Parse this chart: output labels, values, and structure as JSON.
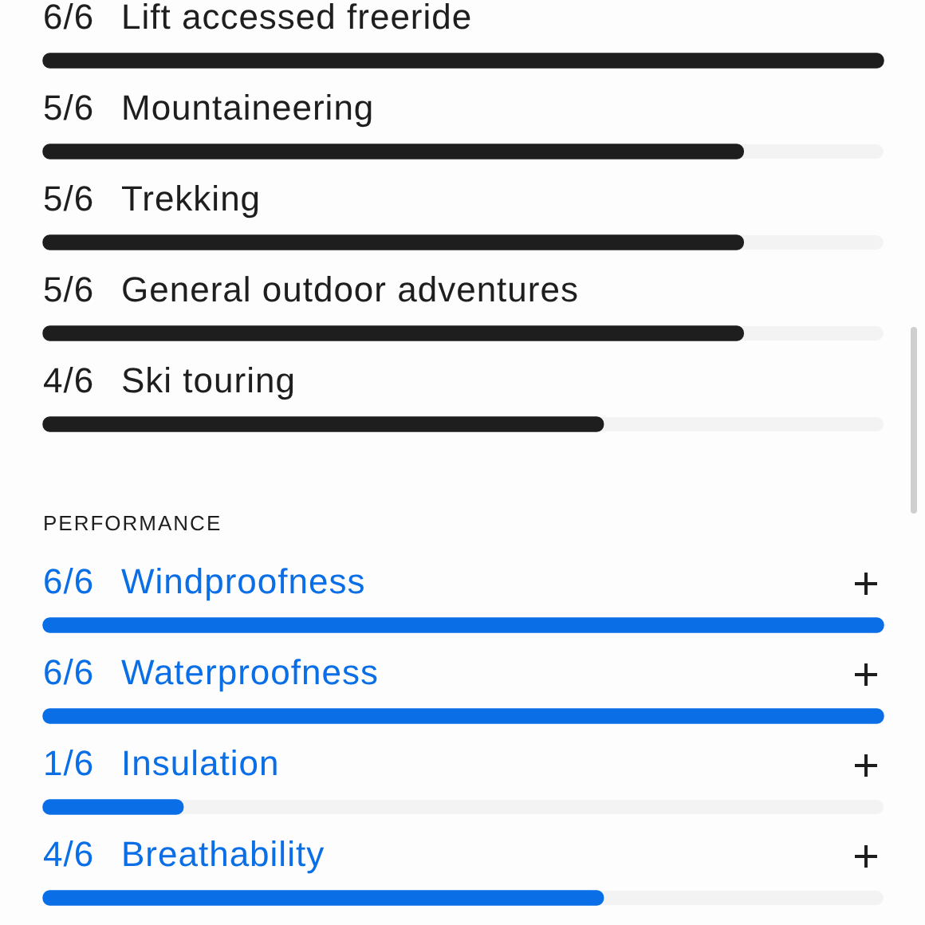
{
  "chart_data": [
    {
      "type": "bar",
      "orientation": "horizontal",
      "categories": [
        "Lift accessed freeride",
        "Mountaineering",
        "Trekking",
        "General outdoor adventures",
        "Ski touring"
      ],
      "values": [
        1,
        0.8333,
        0.8333,
        0.8333,
        0.6667
      ],
      "value_labels": [
        "6/6",
        "5/6",
        "5/6",
        "5/6",
        "4/6"
      ],
      "color": "#1e1e1e",
      "xlim": [
        0,
        1
      ],
      "tick_labels": "y"
    },
    {
      "type": "bar",
      "orientation": "horizontal",
      "title": "PERFORMANCE",
      "categories": [
        "Windproofness",
        "Waterproofness",
        "Insulation",
        "Breathability"
      ],
      "values": [
        1,
        1,
        0.1667,
        0.6667
      ],
      "value_labels": [
        "6/6",
        "6/6",
        "1/6",
        "4/6"
      ],
      "color": "#0a6ee6",
      "xlim": [
        0,
        1
      ],
      "tick_labels": "y"
    }
  ]
}
